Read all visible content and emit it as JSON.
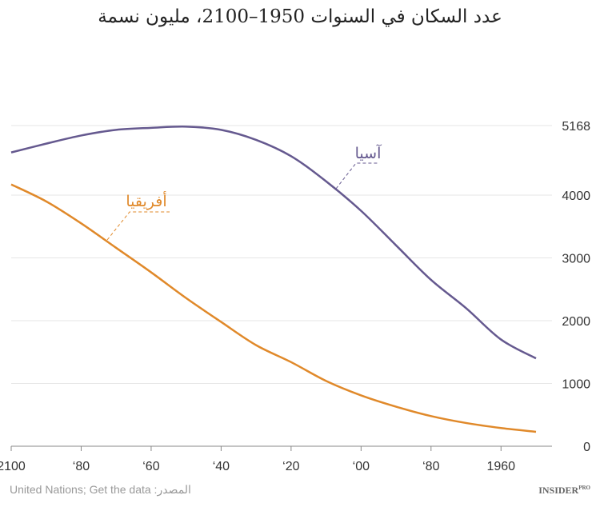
{
  "title": "عدد السكان في السنوات 1950–2100، مليون نسمة",
  "chart_data": {
    "type": "line",
    "title": "عدد السكان في السنوات 1950–2100، مليون نسمة",
    "x": [
      1950,
      1960,
      1970,
      1980,
      1990,
      2000,
      2010,
      2020,
      2030,
      2040,
      2050,
      2060,
      2070,
      2080,
      2090,
      2100
    ],
    "xlim": [
      1950,
      2100
    ],
    "x_reversed": true,
    "x_ticks": [
      2100,
      2080,
      2060,
      2040,
      2020,
      2000,
      1980,
      1960
    ],
    "x_tick_labels": [
      "2100",
      "‘80",
      "‘60",
      "‘40",
      "‘20",
      "‘00",
      "‘80",
      "1960"
    ],
    "y_ticks": [
      0,
      1000,
      2000,
      3000,
      4000,
      5168
    ],
    "y_tick_labels": [
      "0",
      "1000",
      "2000",
      "3000",
      "4000",
      "5168"
    ],
    "ylim": [
      0,
      5168
    ],
    "y_axis_side": "right",
    "grid": true,
    "series": [
      {
        "name": "آسيا",
        "color": "#65598f",
        "values": [
          1400,
          1700,
          2200,
          2650,
          3200,
          3750,
          4220,
          4620,
          4880,
          5040,
          5150,
          5130,
          5040,
          4950,
          4820,
          4680
        ]
      },
      {
        "name": "أفريقيا",
        "color": "#e0892a",
        "values": [
          230,
          290,
          370,
          480,
          630,
          810,
          1040,
          1340,
          1610,
          1980,
          2360,
          2770,
          3160,
          3550,
          3900,
          4170
        ]
      }
    ]
  },
  "footer": {
    "source": "المصدر: United Nations; Get the data",
    "logo": "INSIDER PRO"
  }
}
